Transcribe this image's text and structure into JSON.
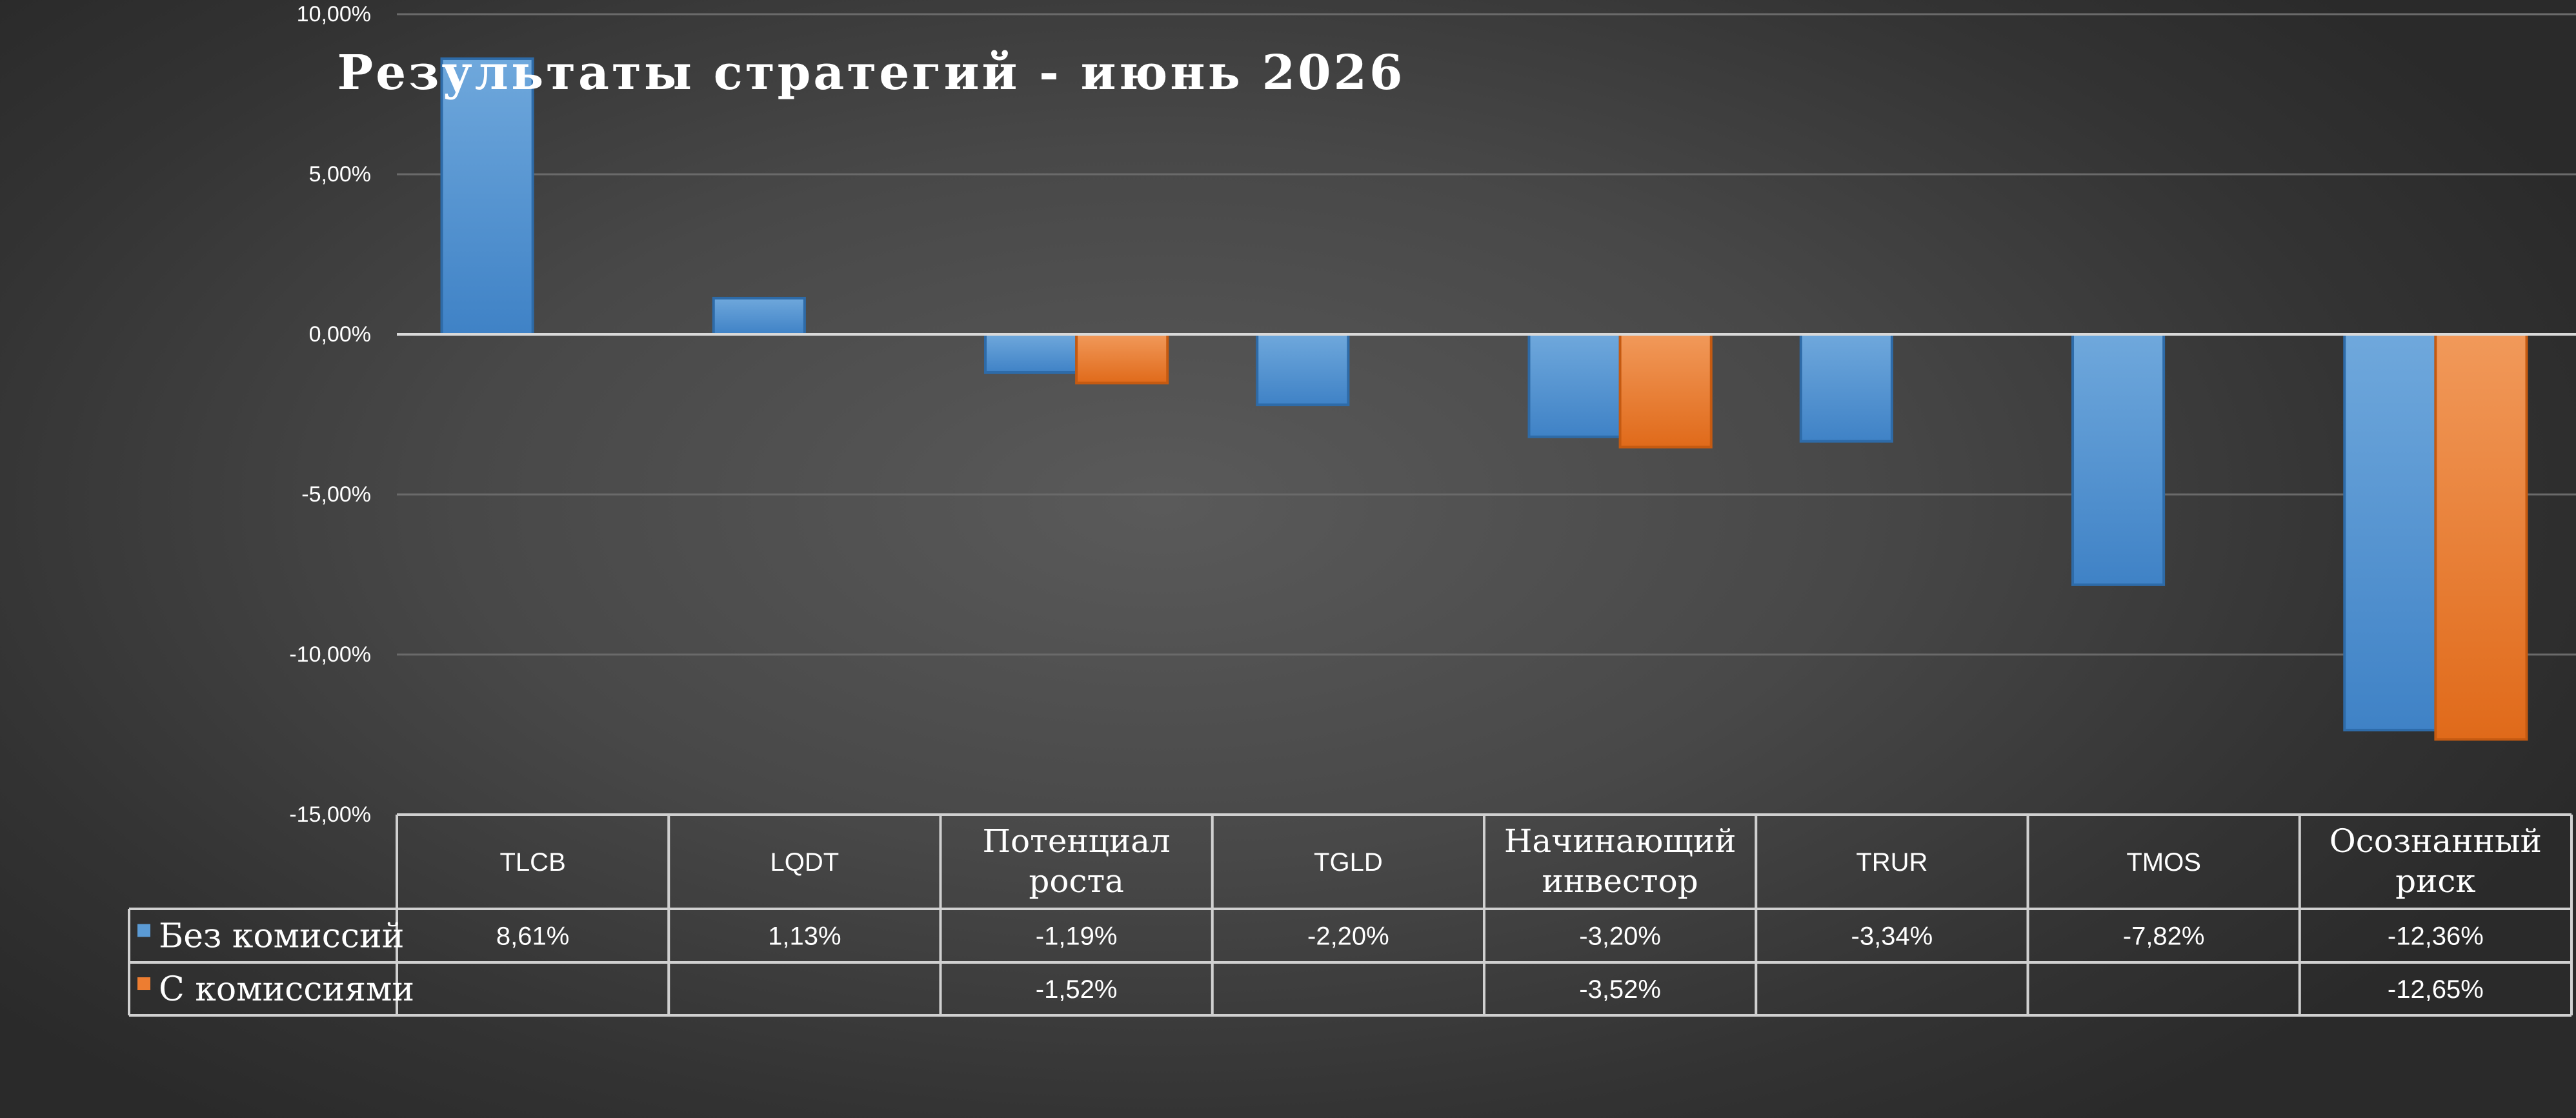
{
  "chart_data": {
    "type": "bar",
    "title": "Результаты стратегий - июнь 2026",
    "categories": [
      "TLCB",
      "LQDT",
      "Потенциал роста",
      "TGLD",
      "Начинающий инвестор",
      "TRUR",
      "TMOS",
      "Осознанный риск"
    ],
    "series": [
      {
        "name": "Без комиссий",
        "color": "#5b9bd5",
        "values": [
          8.61,
          1.13,
          -1.19,
          -2.2,
          -3.2,
          -3.34,
          -7.82,
          -12.36
        ],
        "labels": [
          "8,61%",
          "1,13%",
          "-1,19%",
          "-2,20%",
          "-3,20%",
          "-3,34%",
          "-7,82%",
          "-12,36%"
        ]
      },
      {
        "name": "С комиссиями",
        "color": "#ed7d31",
        "values": [
          null,
          null,
          -1.52,
          null,
          -3.52,
          null,
          null,
          -12.65
        ],
        "labels": [
          "",
          "",
          "-1,52%",
          "",
          "-3,52%",
          "",
          "",
          "-12,65%"
        ]
      }
    ],
    "ylim": [
      -15,
      10
    ],
    "yticks": [
      10,
      5,
      0,
      -5,
      -10,
      -15
    ],
    "ytick_labels": [
      "10,00%",
      "5,00%",
      "0,00%",
      "-5,00%",
      "-10,00%",
      "-15,00%"
    ],
    "grid": true,
    "legend": "data-table"
  }
}
